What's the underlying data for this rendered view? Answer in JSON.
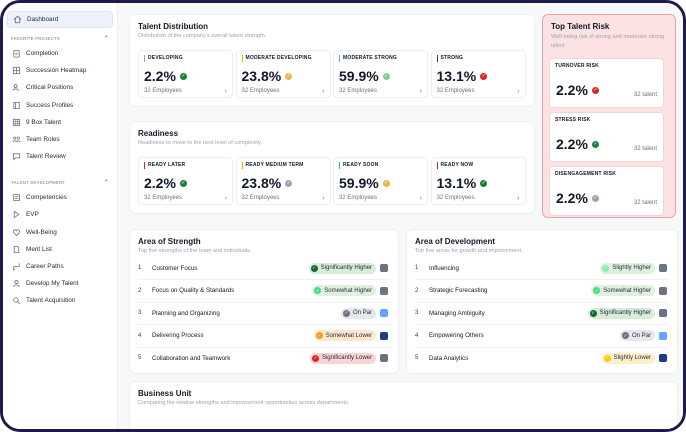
{
  "sidebar": {
    "top": {
      "label": "Dashboard",
      "icon": "home-icon"
    },
    "favorites_title": "FAVORITE PROJECTS",
    "favorites": [
      {
        "label": "Completion",
        "icon": "clipboard-icon"
      },
      {
        "label": "Succession Heatmap",
        "icon": "grid-icon"
      },
      {
        "label": "Critical Positions",
        "icon": "users-icon"
      },
      {
        "label": "Success Profiles",
        "icon": "book-icon"
      },
      {
        "label": "9 Box Talent",
        "icon": "ninebox-icon"
      },
      {
        "label": "Team Roles",
        "icon": "team-icon"
      },
      {
        "label": "Talent Review",
        "icon": "chat-icon"
      }
    ],
    "dev_title": "TALENT DEVELOPMENT",
    "dev": [
      {
        "label": "Competencies",
        "icon": "list-icon"
      },
      {
        "label": "EVP",
        "icon": "tag-icon"
      },
      {
        "label": "Well-Being",
        "icon": "heart-icon"
      },
      {
        "label": "Merit List",
        "icon": "document-icon"
      },
      {
        "label": "Career Paths",
        "icon": "path-icon"
      },
      {
        "label": "Develop My Talent",
        "icon": "person-icon"
      },
      {
        "label": "Talent Acquisition",
        "icon": "search-people-icon"
      }
    ]
  },
  "talent_distribution": {
    "title": "Talent Distribution",
    "subtitle": "Distribution of the company's overall talent strength.",
    "metrics": [
      {
        "label": "DEVELOPING",
        "value": "2.2%",
        "foot": "32 Employees",
        "accent": "#9ca3af",
        "badge": "#15803d"
      },
      {
        "label": "MODERATE DEVELOPING",
        "value": "23.8%",
        "foot": "32 Employees",
        "accent": "#e5b800",
        "badge": "#e5b84a"
      },
      {
        "label": "MODERATE STRONG",
        "value": "59.9%",
        "foot": "32 Employees",
        "accent": "#60a5fa",
        "badge": "#86c98c"
      },
      {
        "label": "STRONG",
        "value": "13.1%",
        "foot": "32 Employees",
        "accent": "#374151",
        "badge": "#dc2626"
      }
    ]
  },
  "readiness": {
    "title": "Readiness",
    "subtitle": "Readiness to move to the next level of complexity.",
    "metrics": [
      {
        "label": "READY LATER",
        "value": "2.2%",
        "foot": "32 Employees",
        "accent": "#dc2626",
        "badge": "#15803d"
      },
      {
        "label": "READY MEDIUM TERM",
        "value": "23.8%",
        "foot": "32 Employees",
        "accent": "#eab308",
        "badge": "#9ca3af"
      },
      {
        "label": "READY SOON",
        "value": "59.9%",
        "foot": "32 Employees",
        "accent": "#22c55e",
        "badge": "#e5b84a"
      },
      {
        "label": "READY NOW",
        "value": "13.1%",
        "foot": "32 Employees",
        "accent": "#dc2626",
        "badge": "#15803d"
      }
    ]
  },
  "top_risk": {
    "title": "Top Talent Risk",
    "subtitle": "Well-being risk of strong and moderate strong talent",
    "items": [
      {
        "label": "TURNOVER RISK",
        "value": "2.2%",
        "meta": "32 talent",
        "badge": "#dc2626"
      },
      {
        "label": "STRESS RISK",
        "value": "2.2%",
        "meta": "32 talent",
        "badge": "#15803d"
      },
      {
        "label": "DISENGAGEMENT RISK",
        "value": "2.2%",
        "meta": "32 talent",
        "badge": "#9ca3af"
      }
    ]
  },
  "strength": {
    "title": "Area of Strength",
    "subtitle": "Top five strengths of the team and individuals.",
    "rows": [
      {
        "num": "1",
        "label": "Customer Focus",
        "pill": "Significantly Higher",
        "bg": "#d7ecd9",
        "dot": "#166534",
        "sq": "#6b7280"
      },
      {
        "num": "2",
        "label": "Focus on Quality & Standards",
        "pill": "Somewhat Higher",
        "bg": "#dff0e1",
        "dot": "#4ade80",
        "sq": "#6b7280"
      },
      {
        "num": "3",
        "label": "Planning and Organizing",
        "pill": "On Par",
        "bg": "#e5e7eb",
        "dot": "#6b7280",
        "sq": "#60a5fa"
      },
      {
        "num": "4",
        "label": "Delivering Process",
        "pill": "Somewhat Lower",
        "bg": "#fde8cc",
        "dot": "#f59e0b",
        "sq": "#1e3a8a"
      },
      {
        "num": "5",
        "label": "Collaboration and Teamwork",
        "pill": "Significantly Lower",
        "bg": "#fbd5d5",
        "dot": "#dc2626",
        "sq": "#6b7280"
      }
    ]
  },
  "development": {
    "title": "Area of Development",
    "subtitle": "Top five areas for growth and improvement.",
    "rows": [
      {
        "num": "1",
        "label": "Influencing",
        "pill": "Slightly Higher",
        "bg": "#dff0e1",
        "dot": "#86efac",
        "sq": "#6b7280"
      },
      {
        "num": "2",
        "label": "Strategic Forecasting",
        "pill": "Somewhat Higher",
        "bg": "#dff0e1",
        "dot": "#4ade80",
        "sq": "#6b7280"
      },
      {
        "num": "3",
        "label": "Managing Ambiguity",
        "pill": "Significantly Higher",
        "bg": "#d7ecd9",
        "dot": "#166534",
        "sq": "#6b7280"
      },
      {
        "num": "4",
        "label": "Empowering Others",
        "pill": "On Par",
        "bg": "#e5e7eb",
        "dot": "#6b7280",
        "sq": "#60a5fa"
      },
      {
        "num": "5",
        "label": "Data Analytics",
        "pill": "Slightly Lower",
        "bg": "#fdf0c8",
        "dot": "#facc15",
        "sq": "#1e3a8a"
      }
    ]
  },
  "business_unit": {
    "title": "Business Unit",
    "subtitle": "Comparing the relative strengths and improvement opportunities across departments."
  }
}
